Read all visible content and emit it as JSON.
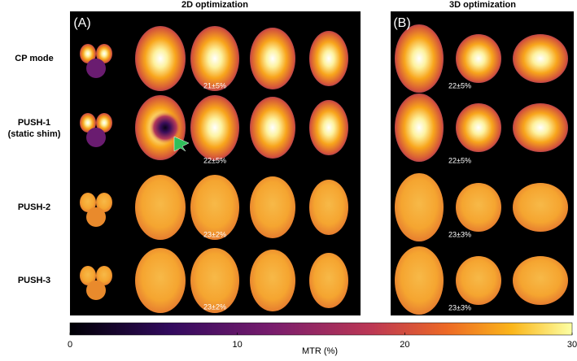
{
  "panels": [
    {
      "label": "(A)",
      "title": "2D optimization",
      "stats": [
        "21±5%",
        "22±5%",
        "23±2%",
        "23±2%"
      ]
    },
    {
      "label": "(B)",
      "title": "3D optimization",
      "stats": [
        "22±5%",
        "22±5%",
        "23±3%",
        "23±3%"
      ]
    }
  ],
  "rows": [
    {
      "label": "CP mode"
    },
    {
      "label": "PUSH-1",
      "sublabel": "(static shim)"
    },
    {
      "label": "PUSH-2"
    },
    {
      "label": "PUSH-3"
    }
  ],
  "colorbar": {
    "label": "MTR (%)",
    "lim": [
      0,
      30
    ],
    "ticks": [
      0,
      10,
      20,
      30
    ]
  }
}
